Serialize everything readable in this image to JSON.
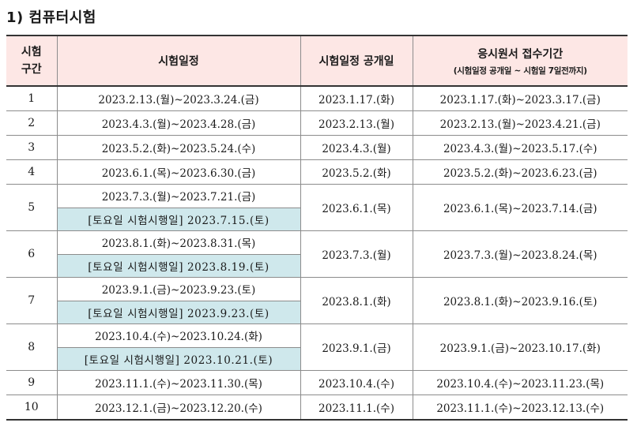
{
  "heading": "1) 컴퓨터시험",
  "headers": {
    "section_line1": "시험",
    "section_line2": "구간",
    "exam_schedule": "시험일정",
    "schedule_open": "시험일정 공개일",
    "application_period": "응시원서 접수기간",
    "application_note": "(시험일정 공개일 ~ 시험일 7일전까지)"
  },
  "rows": [
    {
      "no": "1",
      "schedule": "2023.2.13.(월)~2023.3.24.(금)",
      "saturday": "",
      "open": "2023.1.17.(화)",
      "period": "2023.1.17.(화)~2023.3.17.(금)"
    },
    {
      "no": "2",
      "schedule": "2023.4.3.(월)~2023.4.28.(금)",
      "saturday": "",
      "open": "2023.2.13.(월)",
      "period": "2023.2.13.(월)~2023.4.21.(금)"
    },
    {
      "no": "3",
      "schedule": "2023.5.2.(화)~2023.5.24.(수)",
      "saturday": "",
      "open": "2023.4.3.(월)",
      "period": "2023.4.3.(월)~2023.5.17.(수)"
    },
    {
      "no": "4",
      "schedule": "2023.6.1.(목)~2023.6.30.(금)",
      "saturday": "",
      "open": "2023.5.2.(화)",
      "period": "2023.5.2.(화)~2023.6.23.(금)"
    },
    {
      "no": "5",
      "schedule": "2023.7.3.(월)~2023.7.21.(금)",
      "saturday": "[토요일 시험시행일] 2023.7.15.(토)",
      "open": "2023.6.1.(목)",
      "period": "2023.6.1.(목)~2023.7.14.(금)"
    },
    {
      "no": "6",
      "schedule": "2023.8.1.(화)~2023.8.31.(목)",
      "saturday": "[토요일 시험시행일] 2023.8.19.(토)",
      "open": "2023.7.3.(월)",
      "period": "2023.7.3.(월)~2023.8.24.(목)"
    },
    {
      "no": "7",
      "schedule": "2023.9.1.(금)~2023.9.23.(토)",
      "saturday": "[토요일 시험시행일] 2023.9.23.(토)",
      "open": "2023.8.1.(화)",
      "period": "2023.8.1.(화)~2023.9.16.(토)"
    },
    {
      "no": "8",
      "schedule": "2023.10.4.(수)~2023.10.24.(화)",
      "saturday": "[토요일 시험시행일] 2023.10.21.(토)",
      "open": "2023.9.1.(금)",
      "period": "2023.9.1.(금)~2023.10.17.(화)"
    },
    {
      "no": "9",
      "schedule": "2023.11.1.(수)~2023.11.30.(목)",
      "saturday": "",
      "open": "2023.10.4.(수)",
      "period": "2023.10.4.(수)~2023.11.23.(목)"
    },
    {
      "no": "10",
      "schedule": "2023.12.1.(금)~2023.12.20.(수)",
      "saturday": "",
      "open": "2023.11.1.(수)",
      "period": "2023.11.1.(수)~2023.12.13.(수)"
    }
  ],
  "colors": {
    "header_bg": "#fde7e5",
    "saturday_bg": "#cfe8ec"
  }
}
